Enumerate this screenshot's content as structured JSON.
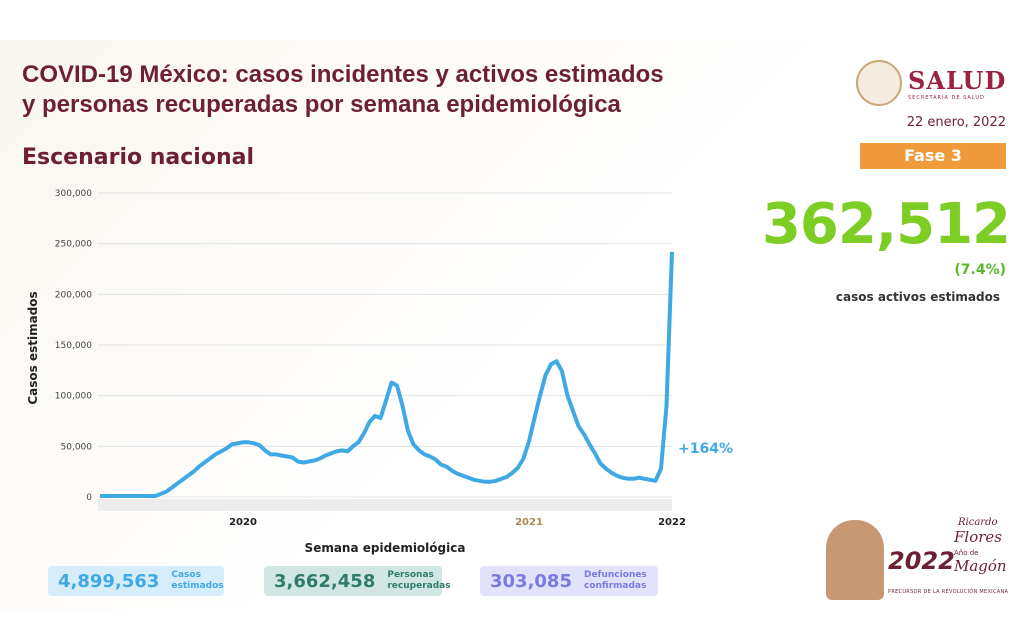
{
  "header": {
    "title_line1": "COVID-19 México: casos incidentes y activos estimados",
    "title_line2": "y personas recuperadas por semana epidemiológica",
    "subtitle": "Escenario nacional"
  },
  "logo": {
    "text": "SALUD",
    "subtext": "SECRETARÍA DE SALUD"
  },
  "date": "22 enero, 2022",
  "phase": "Fase 3",
  "active": {
    "value": "362,512",
    "percent": "(7.4%)",
    "label": "casos activos estimados"
  },
  "summary": [
    {
      "value": "4,899,563",
      "label1": "Casos",
      "label2": "estimados"
    },
    {
      "value": "3,662,458",
      "label1": "Personas",
      "label2": "recuperadas"
    },
    {
      "value": "303,085",
      "label1": "Defunciones",
      "label2": "confirmadas"
    }
  ],
  "badge": {
    "year": "2022",
    "name1": "Ricardo",
    "name2": "Flores",
    "name3": "Magón",
    "tag": "Año de",
    "footer": "PRECURSOR DE LA REVOLUCIÓN MEXICANA"
  },
  "colors": {
    "line": "#3fa9e6",
    "title": "#6d1f35",
    "active": "#7ccd24",
    "phase": "#f09a3c"
  },
  "chart_data": {
    "type": "line",
    "xlabel": "Semana epidemiológica",
    "ylabel": "Casos estimados",
    "ylim": [
      0,
      300000
    ],
    "yticks": [
      "0",
      "50,000",
      "100,000",
      "150,000",
      "200,000",
      "250,000",
      "300,000"
    ],
    "year_labels": [
      {
        "label": "2020",
        "week_index": 26
      },
      {
        "label": "2021",
        "week_index": 78
      },
      {
        "label": "2022",
        "week_index": 104
      }
    ],
    "grid": true,
    "annotation": "+164%",
    "values": [
      1000,
      1000,
      1000,
      1000,
      1000,
      1000,
      1000,
      1000,
      1000,
      1000,
      1000,
      3000,
      5000,
      9000,
      13000,
      17000,
      21000,
      25000,
      30000,
      34000,
      38000,
      42000,
      45000,
      48000,
      52000,
      53000,
      54000,
      54000,
      53000,
      51000,
      46000,
      42000,
      42000,
      41000,
      40000,
      39000,
      35000,
      34000,
      35000,
      36000,
      38000,
      41000,
      43000,
      45000,
      46000,
      45000,
      50000,
      54000,
      63000,
      74000,
      80000,
      78000,
      95000,
      113000,
      110000,
      90000,
      65000,
      52000,
      46000,
      42000,
      40000,
      37000,
      32000,
      30000,
      26000,
      23000,
      21000,
      19000,
      17000,
      16000,
      15000,
      15000,
      16000,
      18000,
      20000,
      24000,
      29000,
      38000,
      55000,
      78000,
      100000,
      120000,
      131000,
      134000,
      124000,
      100000,
      85000,
      70000,
      62000,
      52000,
      43000,
      33000,
      28000,
      24000,
      21000,
      19000,
      18000,
      18000,
      19000,
      18000,
      17000,
      16000,
      28000,
      90000,
      242000
    ]
  }
}
